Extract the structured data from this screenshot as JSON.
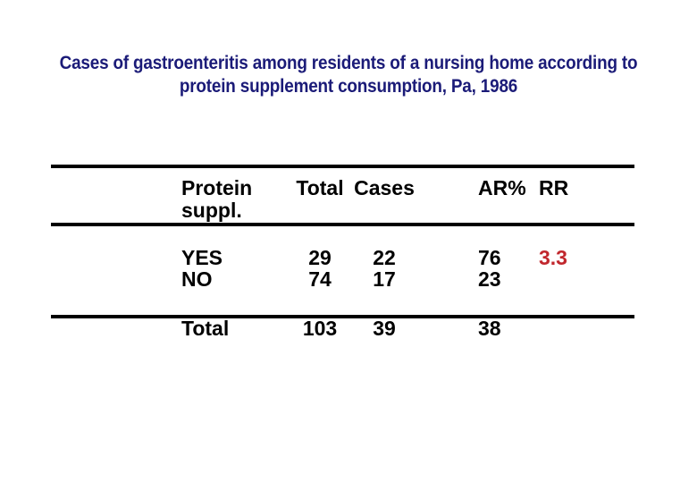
{
  "slide": {
    "title_line1": "Cases of gastroenteritis among residents of a nursing home according to",
    "title_line2": "protein supplement consumption, Pa, 1986"
  },
  "table": {
    "header": {
      "protein_line1": "Protein",
      "protein_line2": "suppl.",
      "total": "Total",
      "cases": "Cases",
      "ar": "AR%",
      "rr": "RR"
    },
    "rows": [
      {
        "label": "YES",
        "total": "29",
        "cases": "22",
        "ar": "76",
        "rr": "3.3"
      },
      {
        "label": "NO",
        "total": "74",
        "cases": "17",
        "ar": "23",
        "rr": ""
      }
    ],
    "total_row": {
      "label": "Total",
      "total": "103",
      "cases": "39",
      "ar": "38"
    }
  },
  "colors": {
    "background": "#ffffff",
    "title_text": "#1b1b78",
    "body_text": "#000000",
    "table_rule": "#000000",
    "rr_highlight": "#c1272d"
  },
  "chart_data": {
    "type": "table",
    "title": "Cases of gastroenteritis among residents of a nursing home according to protein supplement consumption, Pa, 1986",
    "columns": [
      "Protein suppl.",
      "Total",
      "Cases",
      "AR%",
      "RR"
    ],
    "rows": [
      [
        "YES",
        29,
        22,
        76,
        3.3
      ],
      [
        "NO",
        74,
        17,
        23,
        null
      ],
      [
        "Total",
        103,
        39,
        38,
        null
      ]
    ]
  }
}
